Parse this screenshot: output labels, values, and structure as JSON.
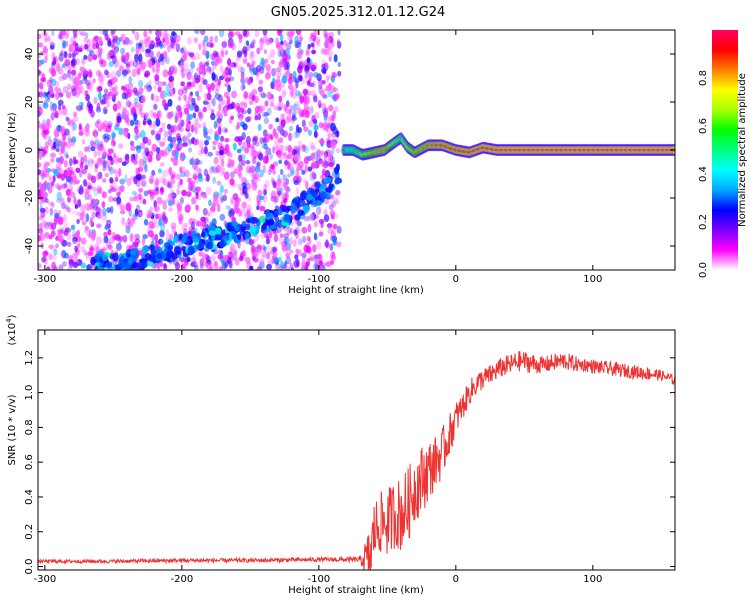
{
  "figure_title": "GN05.2025.312.01.12.G24",
  "chart_data": [
    {
      "type": "heatmap",
      "xlabel": "Height of straight line (km)",
      "ylabel": "Frequency (Hz)",
      "xlim": [
        -305,
        160
      ],
      "ylim": [
        -50,
        50
      ],
      "xticks": [
        -300,
        -200,
        -100,
        0,
        100
      ],
      "xtick_labels": [
        "-300",
        "-200",
        "-100",
        "0",
        "100"
      ],
      "yticks": [
        -40,
        -20,
        0,
        20,
        40
      ],
      "ytick_labels": [
        "-40",
        "-20",
        "0",
        "20",
        "40"
      ],
      "grid": false,
      "colorbar": {
        "label": "Normalized spectral amplitude",
        "range": [
          0,
          1
        ],
        "ticks": [
          0.0,
          0.2,
          0.4,
          0.6,
          0.8
        ],
        "tick_labels": [
          "0.0",
          "0.2",
          "0.4",
          "0.6",
          "0.8"
        ],
        "colormap": [
          "#ffffff",
          "#ff00ff",
          "#7a00ff",
          "#0000ff",
          "#00aaff",
          "#00ffff",
          "#00ff80",
          "#00ff00",
          "#aaff00",
          "#ffff00",
          "#ff8000",
          "#ff0000",
          "#ff0066"
        ]
      },
      "noise_region_x": [
        -305,
        -85
      ],
      "drifting_trace": {
        "x": [
          -240,
          -220,
          -200,
          -180,
          -160,
          -140,
          -120,
          -110,
          -100,
          -90,
          -85
        ],
        "y": [
          -47,
          -44,
          -40,
          -37,
          -34,
          -30,
          -26,
          -22,
          -18,
          -13,
          -9
        ]
      },
      "carrier_trace": {
        "x": [
          -82,
          -75,
          -68,
          -60,
          -52,
          -45,
          -40,
          -35,
          -30,
          -20,
          -10,
          0,
          10,
          20,
          30,
          40,
          60,
          80,
          100,
          120,
          140,
          160
        ],
        "y": [
          0,
          0,
          -2,
          -1,
          0,
          3,
          5,
          1,
          -1,
          2,
          2,
          0,
          -1,
          1,
          0,
          0,
          0,
          0,
          0,
          0,
          0,
          0
        ],
        "amplitude": [
          0.3,
          0.5,
          0.7,
          0.8,
          0.85,
          0.7,
          0.6,
          0.75,
          0.8,
          0.85,
          0.9,
          0.92,
          0.93,
          0.95,
          0.95,
          0.96,
          0.97,
          0.97,
          0.97,
          0.97,
          0.97,
          0.97
        ]
      }
    },
    {
      "type": "line",
      "xlabel": "Height of straight line (km)",
      "ylabel": "SNR (10 * v/v)",
      "yscale_label": "(x10",
      "yscale_exponent": "4",
      "yscale_suffix": ")",
      "xlim": [
        -305,
        160
      ],
      "ylim": [
        -0.02,
        1.36
      ],
      "xticks": [
        -300,
        -200,
        -100,
        0,
        100
      ],
      "xtick_labels": [
        "-300",
        "-200",
        "-100",
        "0",
        "100"
      ],
      "yticks": [
        0.0,
        0.2,
        0.4,
        0.6,
        0.8,
        1.0,
        1.2
      ],
      "ytick_labels": [
        "0.0",
        "0.2",
        "0.4",
        "0.6",
        "0.8",
        "1.0",
        "1.2"
      ],
      "grid": false,
      "series": [
        {
          "color": "#ee3333",
          "x": [
            -305,
            -280,
            -250,
            -200,
            -150,
            -100,
            -70,
            -62,
            -60,
            -55,
            -50,
            -45,
            -40,
            -35,
            -30,
            -25,
            -20,
            -15,
            -10,
            -5,
            0,
            5,
            10,
            15,
            20,
            25,
            30,
            35,
            40,
            45,
            50,
            55,
            60,
            65,
            70,
            75,
            80,
            85,
            90,
            95,
            100,
            110,
            120,
            130,
            140,
            150,
            160
          ],
          "y": [
            0.03,
            0.03,
            0.03,
            0.035,
            0.035,
            0.04,
            0.04,
            0.05,
            0.2,
            0.25,
            0.25,
            0.3,
            0.3,
            0.35,
            0.45,
            0.5,
            0.55,
            0.6,
            0.65,
            0.75,
            0.85,
            0.92,
            1.0,
            1.05,
            1.08,
            1.1,
            1.13,
            1.15,
            1.16,
            1.18,
            1.18,
            1.17,
            1.16,
            1.16,
            1.17,
            1.18,
            1.18,
            1.17,
            1.16,
            1.16,
            1.15,
            1.14,
            1.13,
            1.12,
            1.11,
            1.1,
            1.07
          ],
          "spread": [
            0.01,
            0.01,
            0.01,
            0.012,
            0.012,
            0.012,
            0.015,
            0.2,
            0.18,
            0.18,
            0.2,
            0.2,
            0.22,
            0.22,
            0.2,
            0.2,
            0.18,
            0.15,
            0.15,
            0.12,
            0.1,
            0.08,
            0.07,
            0.07,
            0.06,
            0.06,
            0.06,
            0.06,
            0.06,
            0.06,
            0.06,
            0.06,
            0.05,
            0.05,
            0.05,
            0.05,
            0.05,
            0.05,
            0.04,
            0.04,
            0.04,
            0.04,
            0.04,
            0.04,
            0.04,
            0.03,
            0.03
          ]
        }
      ]
    }
  ]
}
